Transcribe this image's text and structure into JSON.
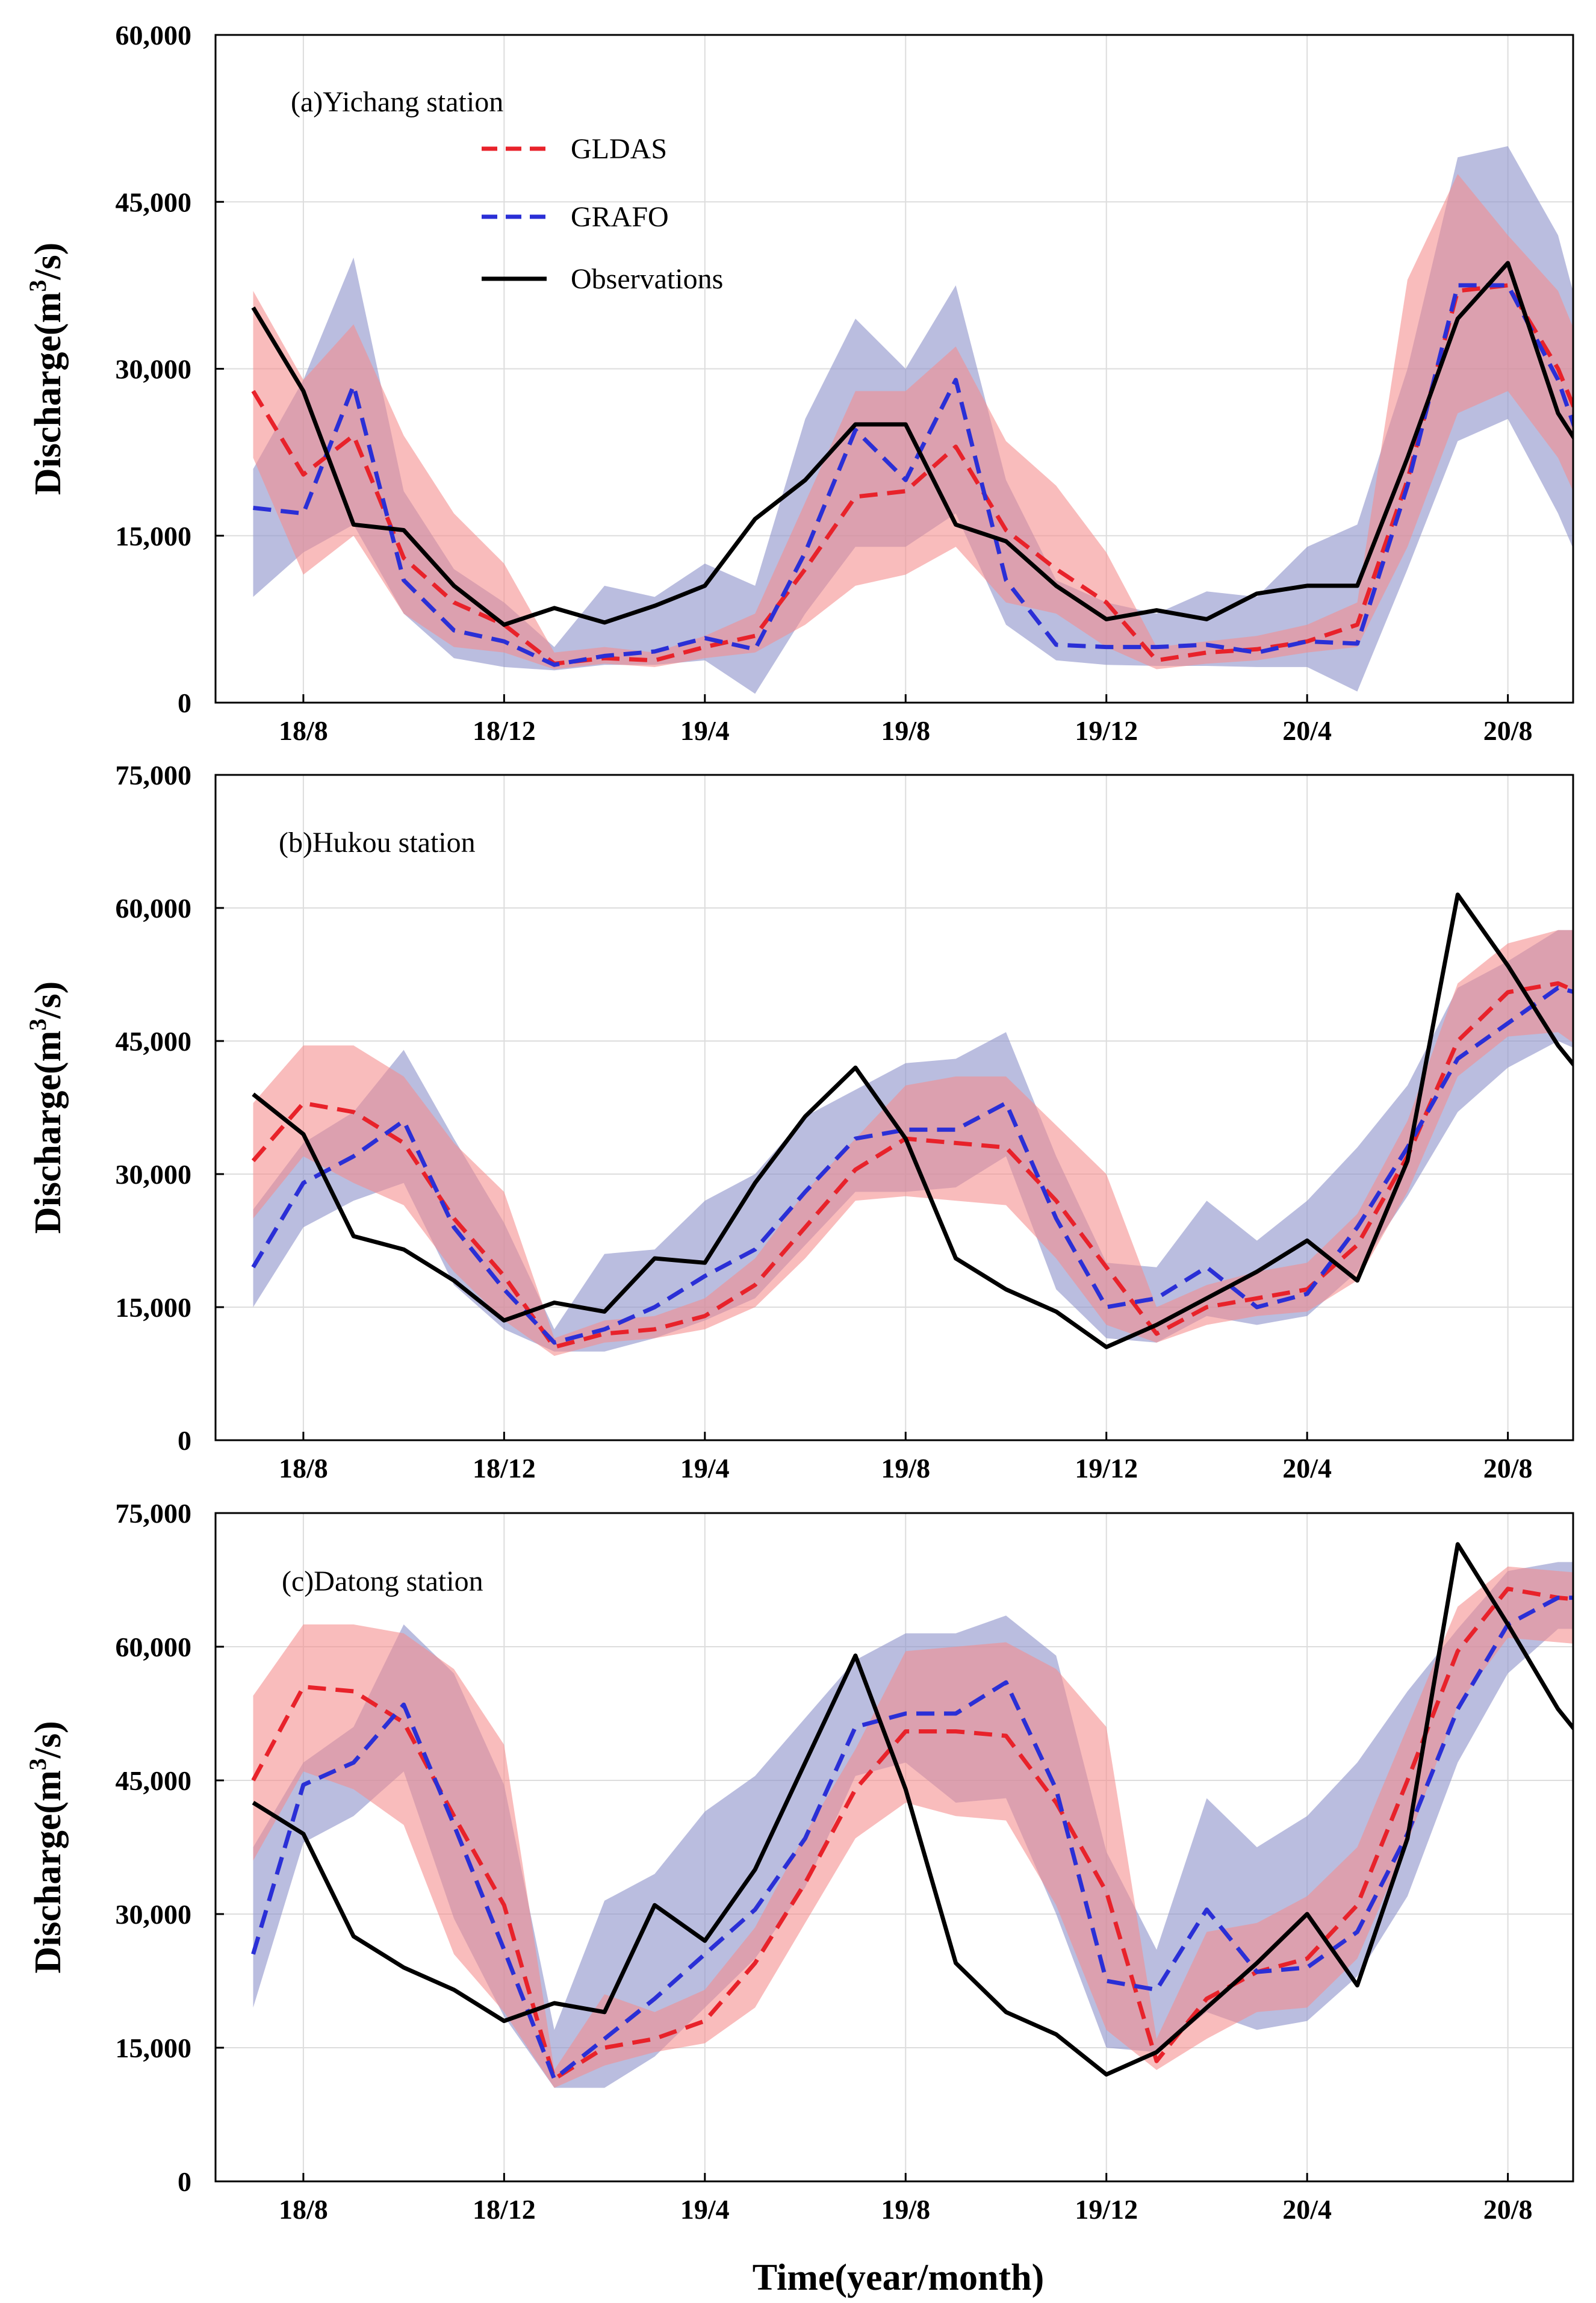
{
  "figure": {
    "xlabel": "Time(year/month)",
    "ylabel_main": "Discharge(m",
    "ylabel_sup": "3",
    "ylabel_tail": "/s)",
    "legend": [
      {
        "name": "GLDAS",
        "color": "#e8222a",
        "dash": true
      },
      {
        "name": "GRAFO",
        "color": "#2a2fd6",
        "dash": true
      },
      {
        "name": "Observations",
        "color": "#000000",
        "dash": false
      }
    ]
  },
  "chart_data": [
    {
      "type": "line",
      "title": "(a)Yichang station",
      "xlabel": "Time(year/month)",
      "ylabel": "Discharge(m3/s)",
      "x_start": "2018-07",
      "x_tick_labels": [
        "18/8",
        "18/12",
        "19/4",
        "19/8",
        "19/12",
        "20/4",
        "20/8"
      ],
      "xlim": [
        -0.75,
        26.3
      ],
      "ylim": [
        0,
        60000
      ],
      "y_ticks": [
        0,
        15000,
        30000,
        45000,
        60000
      ],
      "y_tick_labels": [
        "0",
        "15,000",
        "30,000",
        "45,000",
        "60,000"
      ],
      "grid": true,
      "legend_position": "top-left",
      "series": [
        {
          "name": "GLDAS",
          "color": "#e8222a",
          "band_color": "#f58c8c",
          "values": [
            28000,
            20500,
            24000,
            13000,
            9000,
            7000,
            3500,
            4000,
            3800,
            5000,
            6000,
            12000,
            18500,
            19000,
            23000,
            15500,
            12000,
            9000,
            3800,
            4500,
            4800,
            5500,
            7000,
            20000,
            37000,
            37500,
            30000,
            19000
          ],
          "lower": [
            22000,
            11500,
            15000,
            8000,
            5000,
            4500,
            3000,
            3500,
            3200,
            4000,
            4500,
            7000,
            10500,
            11500,
            14000,
            9000,
            8000,
            5000,
            3000,
            3500,
            3800,
            4500,
            5000,
            14000,
            26000,
            28000,
            22000,
            12000
          ],
          "upper": [
            37000,
            29000,
            34000,
            24000,
            17000,
            12500,
            4500,
            5000,
            4500,
            6000,
            8000,
            18000,
            28000,
            28000,
            32000,
            23500,
            19500,
            13500,
            5000,
            5500,
            6000,
            7000,
            9000,
            38000,
            47500,
            42000,
            37000,
            26000
          ]
        },
        {
          "name": "GRAFO",
          "color": "#2a2fd6",
          "band_color": "#8f95cc",
          "values": [
            17500,
            17000,
            28500,
            11000,
            6500,
            5500,
            3400,
            4200,
            4600,
            5800,
            4800,
            13500,
            24500,
            20000,
            29000,
            11000,
            5200,
            5000,
            5000,
            5200,
            4500,
            5500,
            5300,
            19500,
            37500,
            37500,
            29000,
            16000
          ],
          "lower": [
            9500,
            13500,
            16000,
            8000,
            4000,
            3200,
            2900,
            3400,
            3400,
            3800,
            800,
            8000,
            14000,
            14000,
            17000,
            7000,
            3800,
            3400,
            3300,
            3300,
            3200,
            3200,
            1000,
            12000,
            23500,
            25500,
            17000,
            6500
          ],
          "upper": [
            21000,
            29000,
            40000,
            19000,
            12000,
            9000,
            5000,
            10500,
            9500,
            12500,
            10500,
            25500,
            34500,
            30000,
            37500,
            20000,
            11000,
            9000,
            8000,
            10000,
            9500,
            14000,
            16000,
            30000,
            49000,
            50000,
            42000,
            25000
          ]
        },
        {
          "name": "Observations",
          "color": "#000000",
          "values": [
            35500,
            28000,
            16000,
            15500,
            10500,
            7000,
            8500,
            7200,
            8700,
            10500,
            16500,
            20000,
            25000,
            25000,
            16000,
            14500,
            10500,
            7500,
            8300,
            7500,
            9800,
            10500,
            10500,
            22000,
            34500,
            39500,
            26000,
            19000
          ]
        }
      ]
    },
    {
      "type": "line",
      "title": "(b)Hukou station",
      "xlabel": "Time(year/month)",
      "ylabel": "Discharge(m3/s)",
      "x_start": "2018-07",
      "x_tick_labels": [
        "18/8",
        "18/12",
        "19/4",
        "19/8",
        "19/12",
        "20/4",
        "20/8"
      ],
      "xlim": [
        -0.75,
        26.3
      ],
      "ylim": [
        0,
        75000
      ],
      "y_ticks": [
        0,
        15000,
        30000,
        45000,
        60000,
        75000
      ],
      "y_tick_labels": [
        "0",
        "15,000",
        "30,000",
        "45,000",
        "60,000",
        "75,000"
      ],
      "grid": true,
      "legend_position": "none",
      "series": [
        {
          "name": "GLDAS",
          "color": "#e8222a",
          "band_color": "#f58c8c",
          "values": [
            31500,
            38000,
            37000,
            33500,
            25000,
            18500,
            10500,
            12000,
            12500,
            14000,
            17500,
            24000,
            30500,
            34000,
            33500,
            33000,
            27000,
            19500,
            12000,
            15000,
            16000,
            17000,
            22000,
            32000,
            45000,
            50500,
            51500,
            49000
          ],
          "lower": [
            25000,
            32000,
            29000,
            26500,
            19000,
            13500,
            9500,
            11000,
            11500,
            12500,
            15000,
            20500,
            27000,
            27500,
            27000,
            26500,
            20500,
            13000,
            11000,
            13000,
            14000,
            14500,
            18000,
            28000,
            41000,
            45500,
            46000,
            42000
          ],
          "upper": [
            38000,
            44500,
            44500,
            41000,
            33500,
            28000,
            11500,
            13500,
            14000,
            16000,
            20500,
            28000,
            34000,
            40000,
            41000,
            41000,
            35500,
            30000,
            15000,
            17500,
            19000,
            20000,
            25500,
            36000,
            51500,
            56000,
            57500,
            57500
          ]
        },
        {
          "name": "GRAFO",
          "color": "#2a2fd6",
          "band_color": "#8f95cc",
          "values": [
            19500,
            29000,
            32000,
            36000,
            24000,
            17000,
            11000,
            12500,
            15000,
            18500,
            21500,
            28000,
            34000,
            35000,
            35000,
            38000,
            25000,
            15000,
            16000,
            19500,
            15000,
            16500,
            24000,
            33000,
            43000,
            47000,
            51000,
            49500
          ],
          "lower": [
            15000,
            24000,
            27000,
            29000,
            17500,
            12500,
            10000,
            10000,
            11500,
            13500,
            16000,
            22000,
            28000,
            28000,
            28500,
            32000,
            17000,
            11500,
            11000,
            14000,
            13000,
            14000,
            19000,
            27500,
            37000,
            42000,
            45000,
            42500
          ],
          "upper": [
            26000,
            33500,
            37000,
            44000,
            34000,
            24500,
            12500,
            21000,
            21500,
            27000,
            30000,
            36500,
            39500,
            42500,
            43000,
            46000,
            32000,
            20000,
            19500,
            27000,
            22500,
            27000,
            33000,
            40000,
            51000,
            54000,
            57500,
            57500
          ]
        },
        {
          "name": "Observations",
          "color": "#000000",
          "values": [
            39000,
            34500,
            23000,
            21500,
            18000,
            13500,
            15500,
            14500,
            20500,
            20000,
            29000,
            36500,
            42000,
            34000,
            20500,
            17000,
            14500,
            10500,
            13000,
            16000,
            19000,
            22500,
            18000,
            31500,
            61500,
            53500,
            44500,
            37500
          ]
        }
      ]
    },
    {
      "type": "line",
      "title": "(c)Datong station",
      "xlabel": "Time(year/month)",
      "ylabel": "Discharge(m3/s)",
      "x_start": "2018-07",
      "x_tick_labels": [
        "18/8",
        "18/12",
        "19/4",
        "19/8",
        "19/12",
        "20/4",
        "20/8"
      ],
      "xlim": [
        -0.75,
        26.3
      ],
      "ylim": [
        0,
        75000
      ],
      "y_ticks": [
        0,
        15000,
        30000,
        45000,
        60000,
        75000
      ],
      "y_tick_labels": [
        "0",
        "15,000",
        "30,000",
        "45,000",
        "60,000",
        "75,000"
      ],
      "grid": true,
      "legend_position": "none",
      "series": [
        {
          "name": "GLDAS",
          "color": "#e8222a",
          "band_color": "#f58c8c",
          "values": [
            45000,
            55500,
            55000,
            51500,
            41000,
            31000,
            11500,
            15000,
            16000,
            18000,
            24500,
            33500,
            44000,
            50500,
            50500,
            50000,
            42500,
            32500,
            13500,
            20500,
            23500,
            25000,
            31000,
            45000,
            59500,
            66500,
            65500,
            65000
          ],
          "lower": [
            36000,
            46000,
            44000,
            40000,
            25500,
            19000,
            10500,
            13000,
            14500,
            15500,
            19500,
            29000,
            38500,
            42500,
            41000,
            40500,
            31000,
            17000,
            12500,
            16000,
            19000,
            19500,
            25000,
            38000,
            53500,
            61000,
            60500,
            60000
          ],
          "upper": [
            54500,
            62500,
            62500,
            61500,
            57500,
            49000,
            12500,
            21000,
            19000,
            21500,
            28500,
            39000,
            48500,
            59500,
            60000,
            60500,
            57500,
            51000,
            16000,
            28000,
            29000,
            32000,
            37500,
            51000,
            64500,
            69000,
            68500,
            68000
          ]
        },
        {
          "name": "GRAFO",
          "color": "#2a2fd6",
          "band_color": "#8f95cc",
          "values": [
            25500,
            44500,
            47000,
            53500,
            40000,
            26000,
            11500,
            16000,
            20500,
            25500,
            30500,
            38500,
            51000,
            52500,
            52500,
            56000,
            44000,
            22500,
            21500,
            30500,
            23500,
            24000,
            28000,
            39000,
            53000,
            62500,
            65500,
            65500
          ],
          "lower": [
            19500,
            38000,
            41000,
            46000,
            29500,
            18500,
            10500,
            10500,
            14000,
            19500,
            25000,
            33000,
            45500,
            47000,
            42500,
            43000,
            30000,
            15000,
            14500,
            19000,
            17000,
            18000,
            23000,
            32000,
            47000,
            57000,
            62000,
            62000
          ],
          "upper": [
            37500,
            47000,
            51000,
            62500,
            57000,
            44500,
            17000,
            31500,
            34500,
            41500,
            45500,
            52000,
            58500,
            61500,
            61500,
            63500,
            59000,
            37000,
            26000,
            43000,
            37500,
            41000,
            47000,
            55000,
            62000,
            68500,
            69500,
            69500
          ]
        },
        {
          "name": "Observations",
          "color": "#000000",
          "values": [
            42500,
            39000,
            27500,
            24000,
            21500,
            18000,
            20000,
            19000,
            31000,
            27000,
            35000,
            47000,
            59000,
            44000,
            24500,
            19000,
            16500,
            12000,
            14500,
            19500,
            24500,
            30000,
            22000,
            38500,
            71500,
            62500,
            53000,
            46000
          ]
        }
      ]
    }
  ]
}
